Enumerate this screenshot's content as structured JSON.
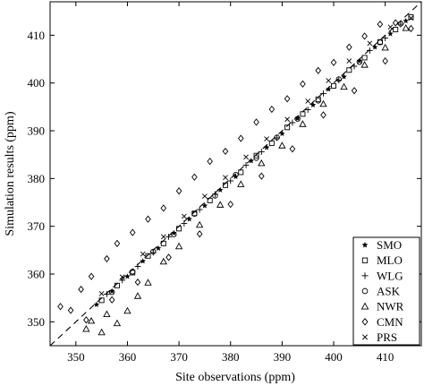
{
  "chart_data": {
    "type": "scatter",
    "title": "",
    "xlabel": "Site observations (ppm)",
    "ylabel": "Simulation results (ppm)",
    "xlim": [
      345,
      417
    ],
    "ylim": [
      345,
      417
    ],
    "x_ticks": [
      350,
      360,
      370,
      380,
      390,
      400,
      410
    ],
    "y_ticks": [
      350,
      360,
      370,
      380,
      390,
      400,
      410
    ],
    "reference_line": {
      "type": "1:1",
      "style": "dashed"
    },
    "grid": false,
    "legend_position": "bottom-right",
    "marker_color": "#000000",
    "series": [
      {
        "name": "SMO",
        "marker": "star",
        "x": [
          354,
          357,
          360,
          363,
          366,
          369,
          372,
          375,
          378,
          381,
          384,
          387,
          390,
          393,
          396,
          399,
          402,
          405,
          408,
          411,
          414
        ],
        "y": [
          353.6,
          356.4,
          359.5,
          362.7,
          365.4,
          368.6,
          371.5,
          374.3,
          377.6,
          380.4,
          383.7,
          386.5,
          389.4,
          392.6,
          395.4,
          398.7,
          401.3,
          404.6,
          407.5,
          410.3,
          413.0
        ]
      },
      {
        "name": "MLO",
        "marker": "square",
        "x": [
          355,
          358,
          361,
          364,
          367,
          370,
          373,
          376,
          379,
          382,
          385,
          388,
          391,
          394,
          397,
          400,
          403,
          406,
          409,
          412,
          415
        ],
        "y": [
          354.5,
          357.6,
          360.3,
          363.8,
          366.4,
          369.5,
          372.7,
          375.4,
          378.6,
          381.3,
          384.8,
          387.4,
          390.7,
          393.5,
          396.6,
          399.4,
          402.7,
          405.3,
          408.6,
          411.2,
          413.8
        ]
      },
      {
        "name": "WLG",
        "marker": "plus",
        "x": [
          356,
          359,
          362,
          365,
          368,
          371,
          374,
          377,
          380,
          383,
          386,
          389,
          392,
          395,
          398,
          401,
          404,
          407,
          410,
          413
        ],
        "y": [
          355.8,
          358.7,
          361.6,
          364.5,
          367.8,
          370.6,
          373.5,
          376.7,
          379.5,
          382.8,
          385.6,
          388.5,
          391.7,
          394.4,
          397.8,
          400.6,
          403.5,
          406.8,
          409.4,
          412.3
        ]
      },
      {
        "name": "ASK",
        "marker": "circle",
        "x": [
          357,
          361,
          365,
          369,
          373,
          377,
          381,
          385,
          389,
          393,
          397,
          401,
          405,
          409,
          413
        ],
        "y": [
          356.2,
          360.5,
          364.7,
          368.3,
          372.6,
          376.4,
          380.8,
          384.3,
          388.6,
          392.5,
          396.3,
          400.8,
          404.4,
          408.5,
          412.4
        ]
      },
      {
        "name": "NWR",
        "marker": "triangle",
        "x": [
          352,
          353,
          355,
          356,
          358,
          360,
          362,
          364,
          367,
          370,
          374,
          378,
          382,
          386,
          390,
          394,
          398,
          402,
          406,
          410,
          414
        ],
        "y": [
          348.5,
          350.2,
          347.8,
          351.6,
          349.7,
          352.3,
          355.4,
          358.2,
          362.6,
          365.8,
          370.3,
          374.5,
          378.8,
          383.2,
          386.9,
          391.4,
          395.6,
          399.2,
          403.8,
          407.4,
          411.5
        ]
      },
      {
        "name": "CMN",
        "marker": "diamond",
        "x": [
          347,
          349,
          351,
          353,
          356,
          358,
          361,
          364,
          367,
          370,
          373,
          376,
          379,
          382,
          385,
          388,
          391,
          394,
          397,
          400,
          403,
          406,
          409,
          412,
          415,
          352,
          357,
          362,
          368,
          374,
          380,
          386,
          392,
          398,
          404,
          410
        ],
        "y": [
          353.2,
          352.4,
          356.8,
          359.5,
          363.2,
          366.4,
          368.7,
          371.5,
          373.8,
          377.4,
          380.3,
          383.6,
          385.7,
          388.4,
          391.8,
          394.5,
          396.7,
          399.8,
          402.6,
          404.3,
          407.5,
          409.8,
          412.3,
          412.6,
          411.4,
          350.4,
          354.6,
          358.3,
          363.5,
          368.4,
          374.6,
          380.5,
          386.2,
          393.3,
          398.4,
          404.6
        ]
      },
      {
        "name": "PRS",
        "marker": "cross",
        "x": [
          355,
          359,
          363,
          367,
          371,
          375,
          379,
          383,
          387,
          391,
          395,
          399,
          403,
          407,
          411,
          415
        ],
        "y": [
          355.9,
          359.4,
          364.2,
          367.8,
          372.1,
          376.3,
          380.2,
          384.5,
          388.3,
          392.4,
          396.2,
          400.5,
          404.6,
          408.3,
          411.7,
          413.6
        ]
      }
    ]
  }
}
